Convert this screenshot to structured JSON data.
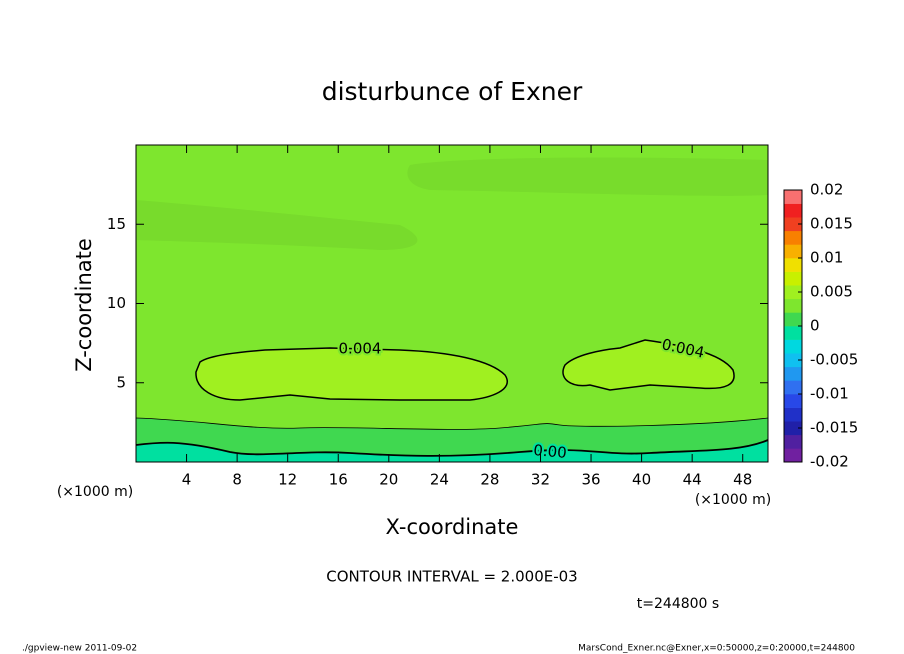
{
  "chart_data": {
    "type": "contour",
    "title": "disturbunce of Exner",
    "xlabel": "X-coordinate",
    "ylabel": "Z-coordinate",
    "x_unit_label": "(×1000 m)",
    "x_unit_label_right": "(×1000 m)",
    "xlim": [
      0,
      50
    ],
    "xticks": [
      4,
      8,
      12,
      16,
      20,
      24,
      28,
      32,
      36,
      40,
      44,
      48
    ],
    "ylim": [
      0,
      20
    ],
    "yticks": [
      5,
      10,
      15
    ],
    "colorbar": {
      "lim": [
        -0.02,
        0.02
      ],
      "ticks": [
        0.02,
        0.015,
        0.01,
        0.005,
        0,
        -0.005,
        -0.01,
        -0.015,
        -0.02
      ],
      "colors": [
        "#7020a0",
        "#5020a0",
        "#2020a8",
        "#2030c8",
        "#2848e8",
        "#3070f0",
        "#2098f0",
        "#10c0f0",
        "#00d8e0",
        "#00e0a0",
        "#40d850",
        "#7ee62e",
        "#a0f020",
        "#c8f000",
        "#f0e000",
        "#f8b000",
        "#f88000",
        "#f04020",
        "#f02020",
        "#f87070"
      ]
    },
    "contours": [
      {
        "level": 0.004,
        "label": "0.004"
      },
      {
        "level": 0.004,
        "label": "0.004"
      },
      {
        "level": 0,
        "label": "0.00"
      }
    ],
    "contour_interval": "CONTOUR INTERVAL = 2.000E-03",
    "time_label": "t=244800 s",
    "footer_left": "./gpview-new  2011-09-02",
    "footer_right": "MarsCond_Exner.nc@Exner,x=0:50000,z=0:20000,t=244800"
  }
}
